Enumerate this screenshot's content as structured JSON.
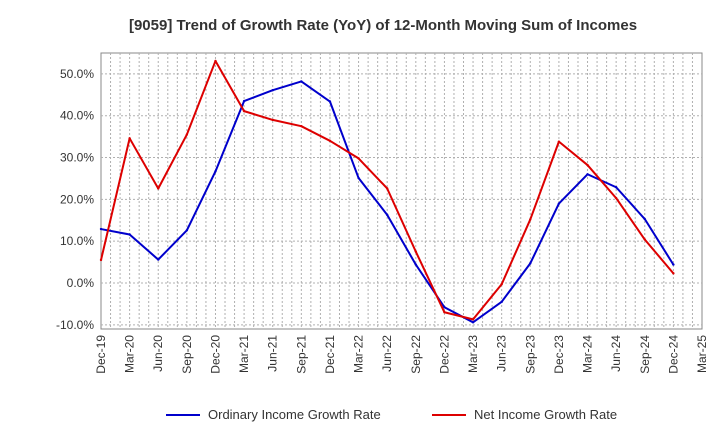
{
  "chart_data": {
    "type": "line",
    "title": "[9059]  Trend of Growth Rate (YoY) of 12-Month Moving Sum of Incomes",
    "x": [
      "Dec-19",
      "Mar-20",
      "Jun-20",
      "Sep-20",
      "Dec-20",
      "Mar-21",
      "Jun-21",
      "Sep-21",
      "Dec-21",
      "Mar-22",
      "Jun-22",
      "Sep-22",
      "Dec-22",
      "Mar-23",
      "Jun-23",
      "Sep-23",
      "Dec-23",
      "Mar-24",
      "Jun-24",
      "Sep-24",
      "Dec-24",
      "Mar-25"
    ],
    "y_ticks": [
      "50.0%",
      "40.0%",
      "30.0%",
      "20.0%",
      "10.0%",
      "0.0%",
      "-10.0%"
    ],
    "y_tick_values": [
      50,
      40,
      30,
      20,
      10,
      0,
      -10
    ],
    "ylim": [
      -11,
      55
    ],
    "grid": true,
    "legend_position": "bottom",
    "series": [
      {
        "name": "Ordinary Income Growth Rate",
        "color": "#0000cc",
        "values": [
          12.9,
          11.6,
          5.6,
          12.6,
          26.7,
          43.5,
          46.1,
          48.2,
          43.4,
          25.1,
          16.3,
          4.4,
          -5.8,
          -9.4,
          -4.5,
          4.7,
          19.0,
          26.0,
          22.9,
          15.3,
          4.4,
          null
        ]
      },
      {
        "name": "Net Income Growth Rate",
        "color": "#dd0000",
        "values": [
          5.5,
          34.6,
          22.6,
          35.5,
          53.1,
          41.1,
          39.0,
          37.5,
          34.0,
          29.8,
          22.6,
          7.5,
          -7.0,
          -8.7,
          -0.3,
          15.2,
          33.8,
          28.2,
          20.3,
          10.4,
          2.3,
          null
        ]
      }
    ]
  }
}
